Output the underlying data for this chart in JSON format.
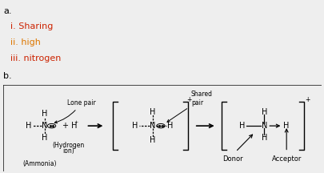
{
  "bg_color": "#eeeeee",
  "diagram_bg": "#ffffff",
  "text_color": "#000000",
  "title_a": "a.",
  "title_b": "b.",
  "line_i": "i. Sharing",
  "line_ii": "ii. high",
  "line_iii": "iii. nitrogen",
  "color_a": "#000000",
  "color_b": "#000000",
  "color_i": "#cc2200",
  "color_ii": "#dd7700",
  "color_iii": "#cc2200",
  "fs": 7.0,
  "fs_small": 5.5,
  "fs_label": 6.0
}
